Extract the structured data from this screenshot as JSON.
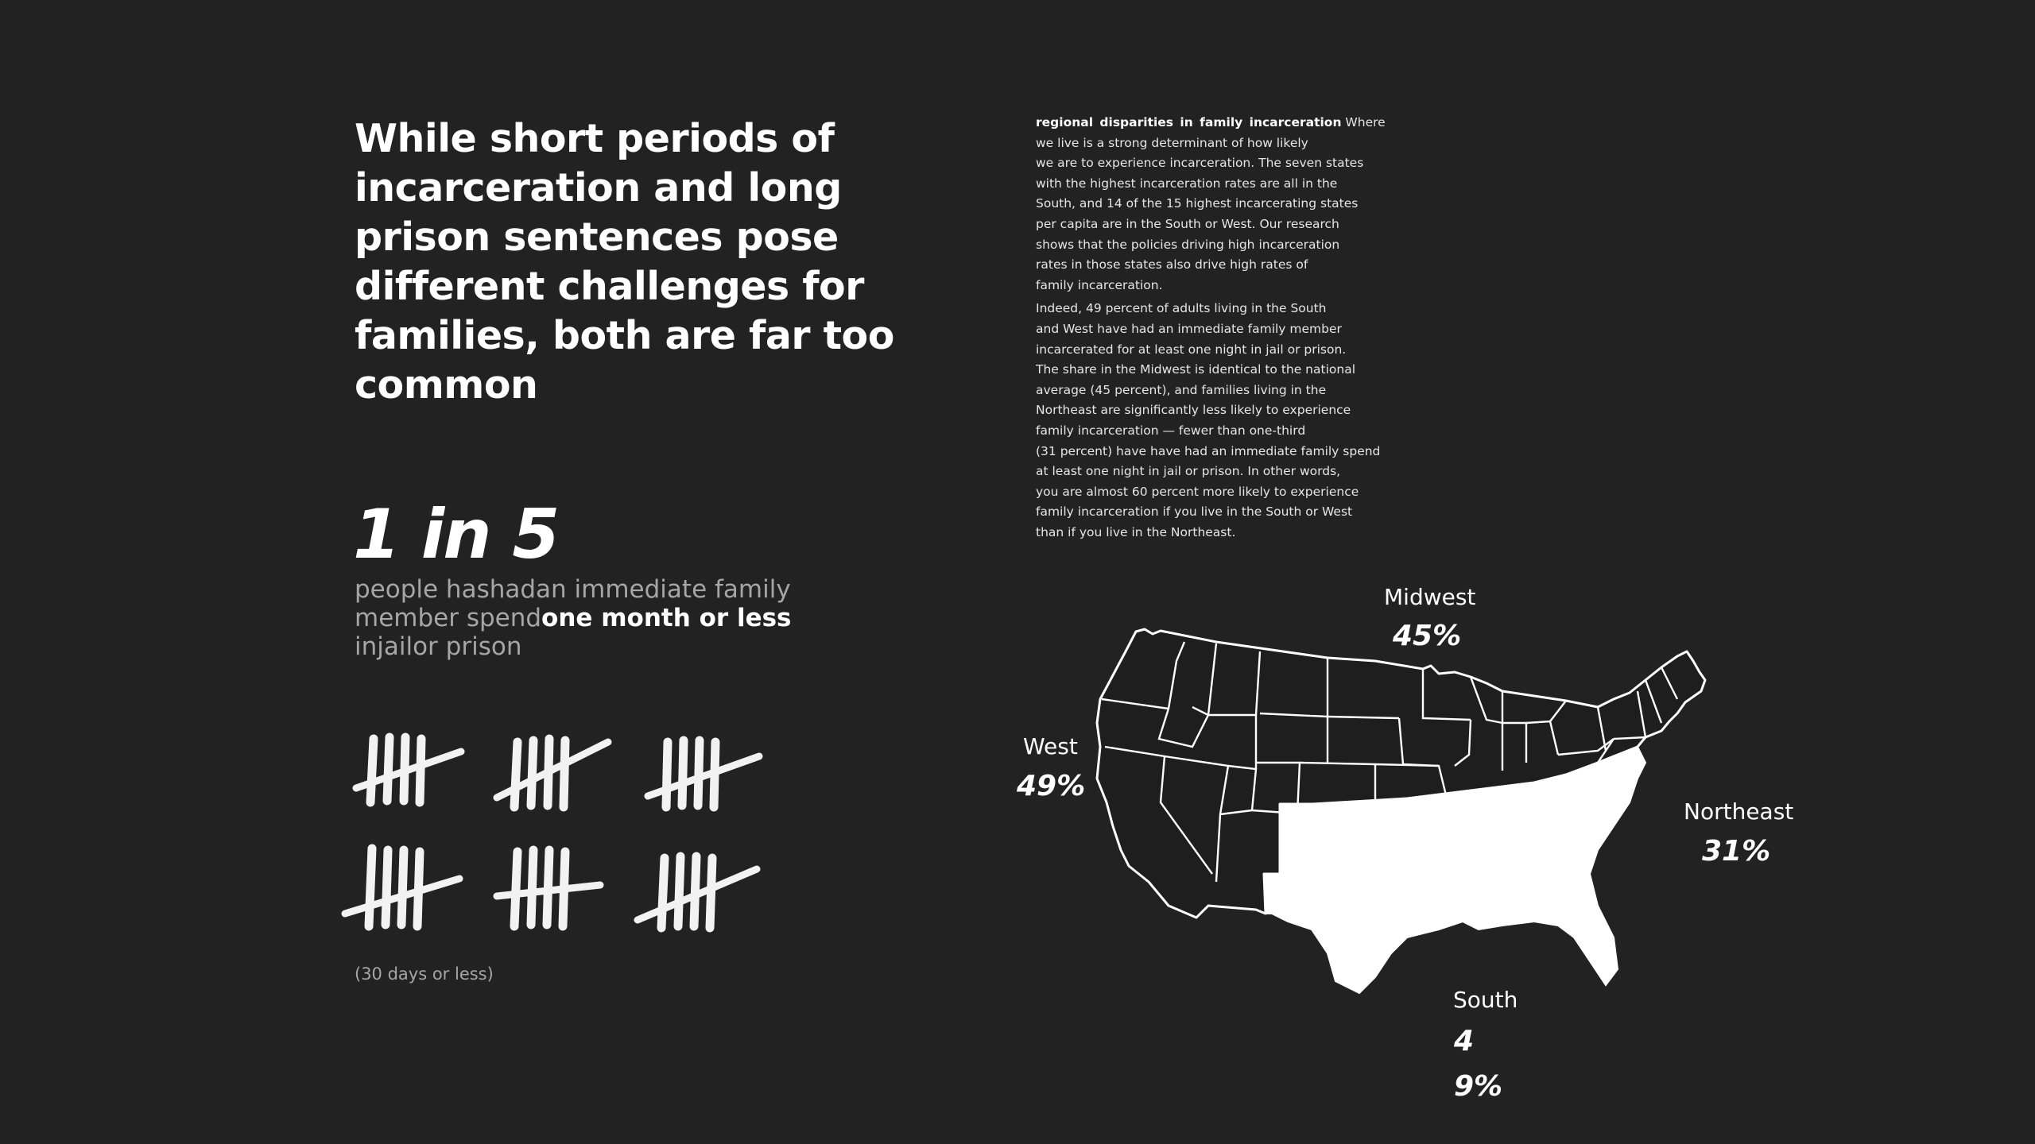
{
  "headline": "While short periods of incarceration and long prison sentences pose different challenges for families, both are far too common",
  "stat": {
    "big": "1 in 5",
    "desc_start": "people hashadan immediate family member spend",
    "desc_emphasis": "one month or less",
    "desc_end": "injailor prison",
    "footnote": "(30 days or less)"
  },
  "tally_groups": 6,
  "body": {
    "lead": "regional disparities in family incarceration",
    "para1": " Where\nwe live is a strong determinant of how likely\nwe are to experience incarceration. The seven states\nwith the highest incarceration rates are all in the\nSouth, and 14 of the 15 highest incarcerating states\nper capita are in the South or West. Our research\nshows that the policies driving high incarceration\nrates in those states also drive high rates of\nfamily incarceration.",
    "para2": "Indeed, 49 percent of adults living in the South\nand West have had an immediate family member\nincarcerated for at least one night in jail or prison.\nThe share in the Midwest is identical to the national\naverage (45 percent), and families living in the\nNortheast are significantly less likely to experience\nfamily incarceration — fewer than one-third\n(31 percent) have have had an immediate family spend\nat least one night in jail or prison. In other words,\nyou are almost 60 percent more likely to experience\nfamily incarceration if you live in the South or West\nthan if you live in the Northeast."
  },
  "regions": {
    "midwest": {
      "name": "Midwest",
      "pct": "45%"
    },
    "west": {
      "name": "West",
      "pct": "49%"
    },
    "northeast": {
      "name": "Northeast",
      "pct": "31%"
    },
    "south": {
      "name": "South",
      "pct": "49%"
    }
  },
  "colors": {
    "background": "#222222",
    "text": "#ffffff",
    "muted": "#a6a6a6",
    "highlight_region": "#ffffff"
  }
}
